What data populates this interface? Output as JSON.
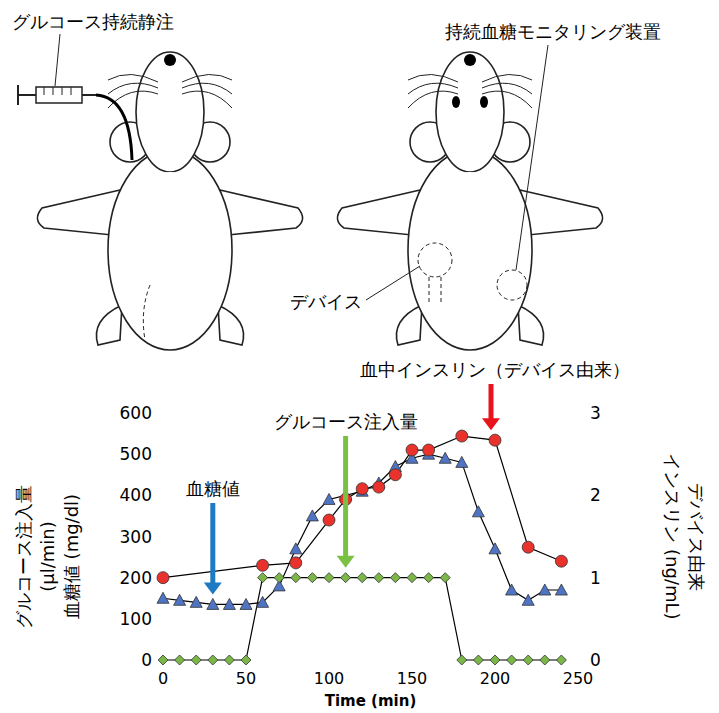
{
  "chart_data": {
    "type": "line",
    "x_label": "Time (min)",
    "y_label": [
      "グルコース注入量",
      "(µl/min)",
      "血糖値 (mg/dl)"
    ],
    "y2_label": [
      "デバイス由来",
      "インスリン (ng/mL)"
    ],
    "xlim": [
      0,
      250
    ],
    "xticks": [
      0,
      50,
      100,
      150,
      200,
      250
    ],
    "ylim": [
      0,
      600
    ],
    "yticks": [
      0,
      100,
      200,
      300,
      400,
      500,
      600
    ],
    "y2lim": [
      0,
      3
    ],
    "y2ticks": [
      0,
      1,
      2,
      3
    ],
    "grid": false,
    "series": [
      {
        "name": "血糖値",
        "color": "#4f74c4",
        "marker": "triangle",
        "x": [
          0,
          10,
          20,
          30,
          40,
          50,
          60,
          70,
          80,
          90,
          100,
          110,
          120,
          130,
          140,
          150,
          160,
          170,
          180,
          190,
          200,
          210,
          220,
          230,
          240
        ],
        "values": [
          150,
          145,
          140,
          135,
          135,
          135,
          140,
          180,
          270,
          350,
          390,
          400,
          410,
          430,
          470,
          490,
          500,
          490,
          480,
          360,
          270,
          170,
          145,
          170,
          170
        ]
      },
      {
        "name": "グルコース注入量",
        "color": "#7ab648",
        "marker": "diamond",
        "x": [
          0,
          10,
          20,
          30,
          40,
          50,
          60,
          70,
          80,
          90,
          100,
          110,
          120,
          130,
          140,
          150,
          160,
          170,
          180,
          190,
          200,
          210,
          220,
          230,
          240
        ],
        "values": [
          0,
          0,
          0,
          0,
          0,
          0,
          200,
          200,
          200,
          200,
          200,
          200,
          200,
          200,
          200,
          200,
          200,
          200,
          0,
          0,
          0,
          0,
          0,
          0,
          0
        ]
      },
      {
        "name": "血中インスリン（デバイス由来）",
        "color": "#e8322b",
        "marker": "circle",
        "axis": "y2",
        "x": [
          0,
          60,
          80,
          100,
          110,
          120,
          130,
          140,
          150,
          160,
          180,
          200,
          220,
          240
        ],
        "values": [
          1.0,
          1.15,
          1.18,
          1.7,
          1.95,
          2.08,
          2.1,
          2.25,
          2.55,
          2.55,
          2.72,
          2.67,
          1.37,
          1.2
        ]
      }
    ]
  },
  "illustration": {
    "left_label": "グルコース持続静注",
    "right_label": "持続血糖モニタリング装置",
    "device_label": "デバイス"
  }
}
